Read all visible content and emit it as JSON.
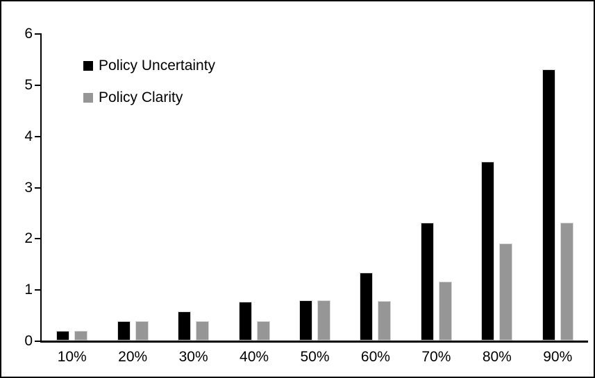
{
  "chart_data": {
    "type": "bar",
    "title": "",
    "xlabel": "",
    "ylabel": "",
    "categories": [
      "10%",
      "20%",
      "30%",
      "40%",
      "50%",
      "60%",
      "70%",
      "80%",
      "90%"
    ],
    "series": [
      {
        "name": "Policy Uncertainty",
        "color": "#000000",
        "values": [
          0.19,
          0.38,
          0.57,
          0.76,
          0.78,
          1.33,
          2.3,
          3.5,
          5.3
        ]
      },
      {
        "name": "Policy Clarity",
        "color": "#969696",
        "values": [
          0.19,
          0.38,
          0.38,
          0.38,
          0.78,
          0.77,
          1.15,
          1.9,
          2.3
        ]
      }
    ],
    "ylim": [
      0,
      6
    ],
    "yticks": [
      0,
      1,
      2,
      3,
      4,
      5,
      6
    ],
    "grid": false,
    "legend_position": "top-left-inside",
    "background_color": "#ffffff",
    "border_color": "#000000"
  }
}
